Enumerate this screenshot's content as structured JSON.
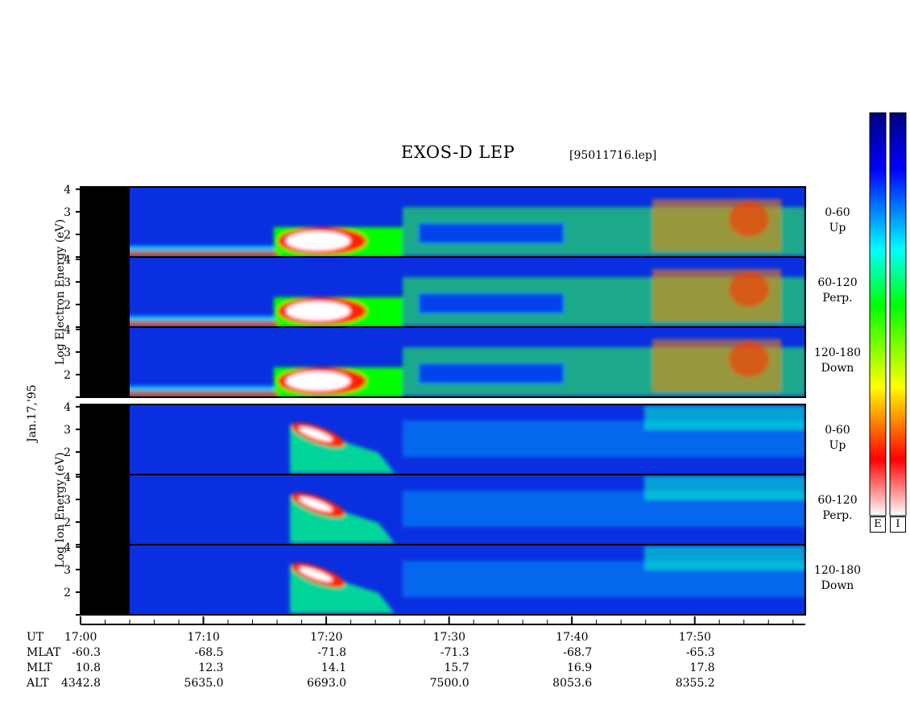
{
  "title": "EXOS-D LEP",
  "filename": "[95011716.lep]",
  "date": "Jan.17,'95",
  "electron_label": "Log   Electron   Energy (eV)",
  "ion_label": "Log   Ion   Energy (eV)",
  "colorbar_labels": [
    "E",
    "I"
  ],
  "chart_data": {
    "type": "heatmap",
    "title": "EXOS-D LEP",
    "panels": [
      {
        "species": "Electron",
        "pitch_angle": "0-60",
        "direction": "Up"
      },
      {
        "species": "Electron",
        "pitch_angle": "60-120",
        "direction": "Perp."
      },
      {
        "species": "Electron",
        "pitch_angle": "120-180",
        "direction": "Down"
      },
      {
        "species": "Ion",
        "pitch_angle": "0-60",
        "direction": "Up"
      },
      {
        "species": "Ion",
        "pitch_angle": "60-120",
        "direction": "Perp."
      },
      {
        "species": "Ion",
        "pitch_angle": "120-180",
        "direction": "Down"
      }
    ],
    "y_ticks": [
      "1",
      "2",
      "3",
      "4"
    ],
    "ylim": [
      1,
      4.1
    ],
    "xlim": [
      "17:00",
      "17:59"
    ],
    "row_labels": [
      "UT",
      "MLAT",
      "MLT",
      "ALT"
    ],
    "columns": [
      {
        "UT": "17:00",
        "MLAT": "-60.3",
        "MLT": "10.8",
        "ALT": "4342.8"
      },
      {
        "UT": "17:10",
        "MLAT": "-68.5",
        "MLT": "12.3",
        "ALT": "5635.0"
      },
      {
        "UT": "17:20",
        "MLAT": "-71.8",
        "MLT": "14.1",
        "ALT": "6693.0"
      },
      {
        "UT": "17:30",
        "MLAT": "-71.3",
        "MLT": "15.7",
        "ALT": "7500.0"
      },
      {
        "UT": "17:40",
        "MLAT": "-68.7",
        "MLT": "16.9",
        "ALT": "8053.6"
      },
      {
        "UT": "17:50",
        "MLAT": "-65.3",
        "MLT": "17.8",
        "ALT": "8355.2"
      }
    ],
    "no_data_interval": [
      "17:00",
      "17:04"
    ],
    "colorscale": [
      "#ffffff",
      "#ff0000",
      "#ffff00",
      "#00ff00",
      "#00ffff",
      "#0000ff",
      "#000080"
    ]
  }
}
